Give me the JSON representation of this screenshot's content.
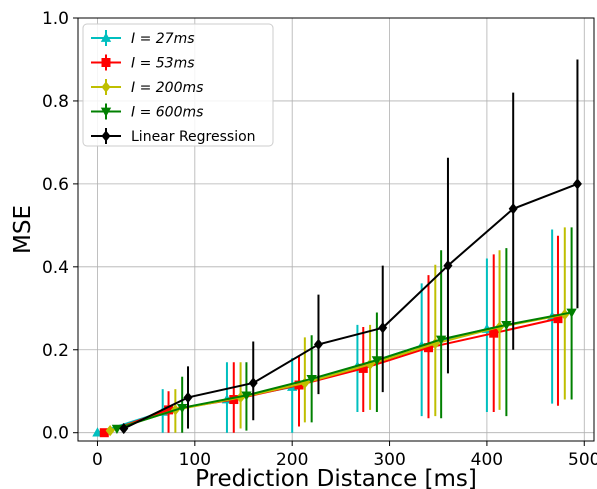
{
  "chart_data": {
    "type": "line",
    "xlabel": "Prediction Distance [ms]",
    "ylabel": "MSE",
    "xlim": [
      -20,
      510
    ],
    "ylim": [
      -0.02,
      1.0
    ],
    "xticks": [
      0,
      100,
      200,
      300,
      400,
      500
    ],
    "yticks": [
      0.0,
      0.2,
      0.4,
      0.6,
      0.8,
      1.0
    ],
    "xtick_labels": [
      "0",
      "100",
      "200",
      "300",
      "400",
      "500"
    ],
    "ytick_labels": [
      "0.0",
      "0.2",
      "0.4",
      "0.6",
      "0.8",
      "1.0"
    ],
    "grid": true,
    "legend_position": "top-left",
    "series": [
      {
        "name": "I = 27ms",
        "legend_label": "I = 27ms",
        "color": "#00bfbf",
        "marker": "triangle-up",
        "x": [
          0,
          67,
          133,
          200,
          267,
          333,
          400,
          467
        ],
        "y": [
          0.0,
          0.05,
          0.08,
          0.11,
          0.16,
          0.21,
          0.25,
          0.28
        ],
        "err_low": [
          0.0,
          0.05,
          0.08,
          0.11,
          0.11,
          0.17,
          0.2,
          0.21
        ],
        "err_high": [
          0.0,
          0.055,
          0.09,
          0.07,
          0.1,
          0.15,
          0.17,
          0.21
        ]
      },
      {
        "name": "I = 53ms",
        "legend_label": "I = 53ms",
        "color": "#ff0000",
        "marker": "square",
        "x": [
          7,
          73,
          140,
          207,
          273,
          340,
          407,
          473
        ],
        "y": [
          0.0,
          0.055,
          0.08,
          0.115,
          0.155,
          0.205,
          0.24,
          0.275
        ],
        "err_low": [
          0.0,
          0.055,
          0.08,
          0.1,
          0.105,
          0.17,
          0.19,
          0.21
        ],
        "err_high": [
          0.0,
          0.045,
          0.09,
          0.07,
          0.1,
          0.175,
          0.19,
          0.2
        ]
      },
      {
        "name": "I = 200ms",
        "legend_label": "I = 200ms",
        "color": "#bfbf00",
        "marker": "diamond",
        "x": [
          13,
          80,
          147,
          213,
          280,
          347,
          413,
          480
        ],
        "y": [
          0.005,
          0.055,
          0.085,
          0.12,
          0.165,
          0.215,
          0.255,
          0.285
        ],
        "err_low": [
          0.0,
          0.055,
          0.075,
          0.095,
          0.11,
          0.175,
          0.2,
          0.205
        ],
        "err_high": [
          0.0,
          0.05,
          0.085,
          0.11,
          0.095,
          0.19,
          0.185,
          0.21
        ]
      },
      {
        "name": "I = 600ms",
        "legend_label": "I = 600ms",
        "color": "#008000",
        "marker": "triangle-down",
        "x": [
          20,
          87,
          153,
          220,
          287,
          353,
          420,
          487
        ],
        "y": [
          0.01,
          0.06,
          0.09,
          0.13,
          0.175,
          0.225,
          0.26,
          0.29
        ],
        "err_low": [
          0.005,
          0.06,
          0.085,
          0.105,
          0.125,
          0.19,
          0.22,
          0.21
        ],
        "err_high": [
          0.005,
          0.075,
          0.08,
          0.105,
          0.115,
          0.215,
          0.185,
          0.205
        ]
      },
      {
        "name": "Linear Regression",
        "legend_label": "Linear Regression",
        "color": "#000000",
        "marker": "diamond",
        "x": [
          27,
          93,
          160,
          227,
          293,
          360,
          427,
          493
        ],
        "y": [
          0.01,
          0.085,
          0.12,
          0.213,
          0.253,
          0.403,
          0.54,
          0.6
        ],
        "err_low": [
          0.005,
          0.075,
          0.09,
          0.12,
          0.155,
          0.26,
          0.34,
          0.3
        ],
        "err_high": [
          0.005,
          0.075,
          0.1,
          0.12,
          0.15,
          0.26,
          0.28,
          0.3
        ]
      }
    ]
  }
}
